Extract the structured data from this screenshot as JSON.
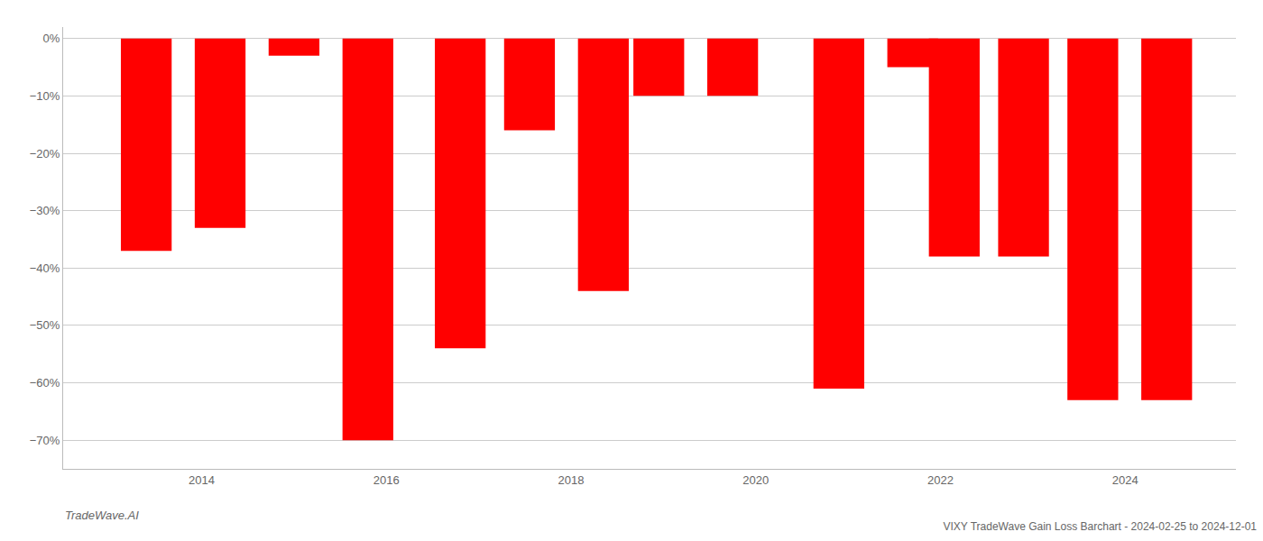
{
  "chart_data": {
    "type": "bar",
    "title": "VIXY TradeWave Gain Loss Barchart - 2024-02-25 to 2024-12-01",
    "annotations": [
      "TradeWave.AI"
    ],
    "x": [
      2013.4,
      2014.2,
      2015.0,
      2015.8,
      2016.8,
      2017.55,
      2018.35,
      2018.95,
      2019.75,
      2020.9,
      2021.7,
      2022.15,
      2022.9,
      2023.65,
      2024.45
    ],
    "values": [
      -37,
      -33,
      -3,
      -70,
      -54,
      -16,
      -44,
      -10,
      -10,
      -61,
      -5,
      -38,
      -38,
      -63,
      -63
    ],
    "color": "#ff0000",
    "xlim": [
      2012.5,
      2025.2
    ],
    "xticks": [
      2014,
      2016,
      2018,
      2020,
      2022,
      2024
    ],
    "ylim": [
      -75,
      2
    ],
    "yticks": [
      {
        "value": 0,
        "label": "0%"
      },
      {
        "value": -10,
        "label": "−10%"
      },
      {
        "value": -20,
        "label": "−20%"
      },
      {
        "value": -30,
        "label": "−30%"
      },
      {
        "value": -40,
        "label": "−40%"
      },
      {
        "value": -50,
        "label": "−50%"
      },
      {
        "value": -60,
        "label": "−60%"
      },
      {
        "value": -70,
        "label": "−70%"
      }
    ],
    "grid": true
  }
}
